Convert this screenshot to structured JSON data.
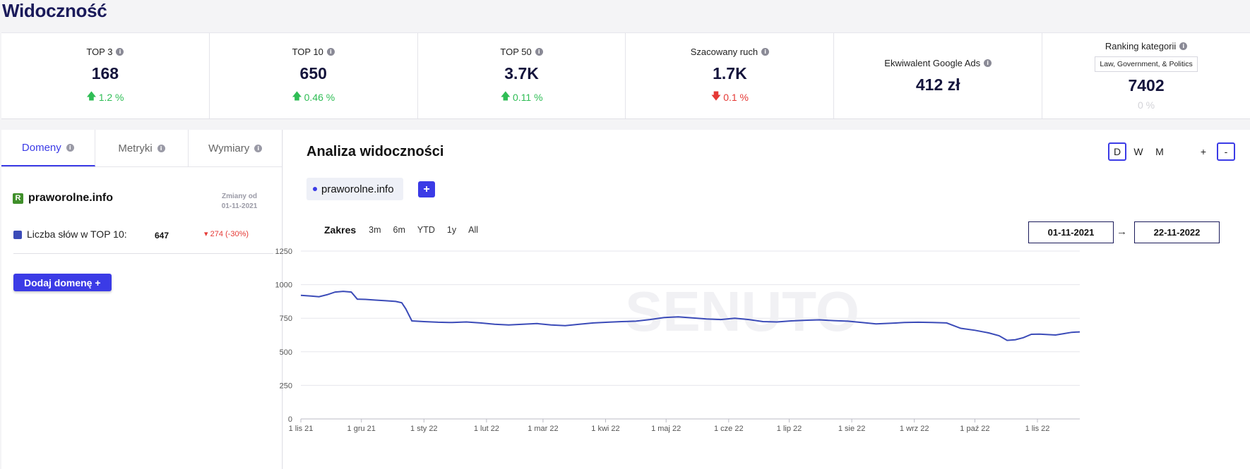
{
  "page_title": "Widoczność",
  "stats": [
    {
      "label": "TOP 3",
      "value": "168",
      "change": "1.2 %",
      "direction": "up"
    },
    {
      "label": "TOP 10",
      "value": "650",
      "change": "0.46 %",
      "direction": "up"
    },
    {
      "label": "TOP 50",
      "value": "3.7K",
      "change": "0.11 %",
      "direction": "up"
    },
    {
      "label": "Szacowany ruch",
      "value": "1.7K",
      "change": "0.1 %",
      "direction": "down"
    },
    {
      "label": "Ekwiwalent Google Ads",
      "value": "412 zł"
    },
    {
      "label": "Ranking kategorii",
      "category": "Law, Government, & Politics",
      "value": "7402",
      "change": "0 %",
      "direction": "none"
    }
  ],
  "left_panel": {
    "tabs": [
      {
        "label": "Domeny",
        "active": true
      },
      {
        "label": "Metryki",
        "active": false
      },
      {
        "label": "Wymiary",
        "active": false
      }
    ],
    "domain": {
      "logo_letter": "R",
      "name": "praworolne.info"
    },
    "changes_since_label": "Zmiany od",
    "changes_since_date": "01-11-2021",
    "metric": {
      "label": "Liczba słów w TOP 10:",
      "value": "647",
      "change": "274 (-30%)",
      "color": "#3b4bb8"
    },
    "add_domain_label": "Dodaj domenę +"
  },
  "right_panel": {
    "title": "Analiza widoczności",
    "granularity": [
      {
        "label": "D",
        "selected": true
      },
      {
        "label": "W",
        "selected": false
      },
      {
        "label": "M",
        "selected": false
      }
    ],
    "zoom": [
      {
        "label": "+",
        "selected": false
      },
      {
        "label": "-",
        "selected": true
      }
    ],
    "domain_chip": "praworolne.info",
    "add_chip_label": "+",
    "range_label": "Zakres",
    "range_buttons": [
      "3m",
      "6m",
      "YTD",
      "1y",
      "All"
    ],
    "date_from": "01-11-2021",
    "date_to": "22-11-2022",
    "date_arrow": "→",
    "watermark": "SENUTO"
  },
  "chart_data": {
    "type": "line",
    "ylim": [
      0,
      1250
    ],
    "yticks": [
      0,
      250,
      500,
      750,
      1000,
      1250
    ],
    "x_range": [
      "2021-11-01",
      "2022-11-22"
    ],
    "xticks": [
      {
        "date": "2021-11-01",
        "label": "1 lis 21"
      },
      {
        "date": "2021-12-01",
        "label": "1 gru 21"
      },
      {
        "date": "2022-01-01",
        "label": "1 sty 22"
      },
      {
        "date": "2022-02-01",
        "label": "1 lut 22"
      },
      {
        "date": "2022-03-01",
        "label": "1 mar 22"
      },
      {
        "date": "2022-04-01",
        "label": "1 kwi 22"
      },
      {
        "date": "2022-05-01",
        "label": "1 maj 22"
      },
      {
        "date": "2022-06-01",
        "label": "1 cze 22"
      },
      {
        "date": "2022-07-01",
        "label": "1 lip 22"
      },
      {
        "date": "2022-08-01",
        "label": "1 sie 22"
      },
      {
        "date": "2022-09-01",
        "label": "1 wrz 22"
      },
      {
        "date": "2022-10-01",
        "label": "1 paź 22"
      },
      {
        "date": "2022-11-01",
        "label": "1 lis 22"
      }
    ],
    "grid": true,
    "line_color": "#3b4bb8",
    "series": [
      {
        "points": [
          [
            "2021-11-01",
            920
          ],
          [
            "2021-11-06",
            915
          ],
          [
            "2021-11-10",
            910
          ],
          [
            "2021-11-14",
            925
          ],
          [
            "2021-11-18",
            945
          ],
          [
            "2021-11-22",
            950
          ],
          [
            "2021-11-26",
            945
          ],
          [
            "2021-11-29",
            892
          ],
          [
            "2021-12-03",
            890
          ],
          [
            "2021-12-08",
            885
          ],
          [
            "2021-12-13",
            880
          ],
          [
            "2021-12-18",
            875
          ],
          [
            "2021-12-21",
            865
          ],
          [
            "2021-12-23",
            820
          ],
          [
            "2021-12-26",
            730
          ],
          [
            "2022-01-01",
            725
          ],
          [
            "2022-01-08",
            720
          ],
          [
            "2022-01-15",
            718
          ],
          [
            "2022-01-22",
            722
          ],
          [
            "2022-01-29",
            715
          ],
          [
            "2022-02-05",
            705
          ],
          [
            "2022-02-12",
            700
          ],
          [
            "2022-02-19",
            705
          ],
          [
            "2022-02-26",
            710
          ],
          [
            "2022-03-05",
            700
          ],
          [
            "2022-03-12",
            695
          ],
          [
            "2022-03-19",
            705
          ],
          [
            "2022-03-26",
            715
          ],
          [
            "2022-04-02",
            720
          ],
          [
            "2022-04-09",
            725
          ],
          [
            "2022-04-16",
            728
          ],
          [
            "2022-04-23",
            740
          ],
          [
            "2022-04-30",
            755
          ],
          [
            "2022-05-07",
            760
          ],
          [
            "2022-05-14",
            752
          ],
          [
            "2022-05-21",
            745
          ],
          [
            "2022-05-28",
            740
          ],
          [
            "2022-06-04",
            750
          ],
          [
            "2022-06-11",
            740
          ],
          [
            "2022-06-18",
            725
          ],
          [
            "2022-06-25",
            722
          ],
          [
            "2022-07-02",
            730
          ],
          [
            "2022-07-09",
            735
          ],
          [
            "2022-07-16",
            738
          ],
          [
            "2022-07-23",
            732
          ],
          [
            "2022-07-30",
            728
          ],
          [
            "2022-08-06",
            718
          ],
          [
            "2022-08-13",
            708
          ],
          [
            "2022-08-20",
            712
          ],
          [
            "2022-08-27",
            718
          ],
          [
            "2022-09-03",
            720
          ],
          [
            "2022-09-10",
            718
          ],
          [
            "2022-09-17",
            715
          ],
          [
            "2022-09-24",
            675
          ],
          [
            "2022-10-01",
            660
          ],
          [
            "2022-10-08",
            640
          ],
          [
            "2022-10-13",
            620
          ],
          [
            "2022-10-17",
            585
          ],
          [
            "2022-10-21",
            590
          ],
          [
            "2022-10-25",
            605
          ],
          [
            "2022-10-29",
            630
          ],
          [
            "2022-11-02",
            632
          ],
          [
            "2022-11-06",
            628
          ],
          [
            "2022-11-10",
            625
          ],
          [
            "2022-11-14",
            635
          ],
          [
            "2022-11-18",
            645
          ],
          [
            "2022-11-22",
            648
          ]
        ]
      }
    ]
  }
}
